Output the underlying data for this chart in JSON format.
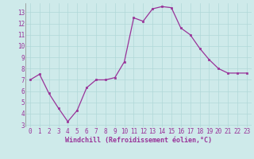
{
  "x": [
    0,
    1,
    2,
    3,
    4,
    5,
    6,
    7,
    8,
    9,
    10,
    11,
    12,
    13,
    14,
    15,
    16,
    17,
    18,
    19,
    20,
    21,
    22,
    23
  ],
  "y": [
    7.0,
    7.5,
    5.8,
    4.5,
    3.3,
    4.3,
    6.3,
    7.0,
    7.0,
    7.2,
    8.6,
    12.5,
    12.2,
    13.3,
    13.5,
    13.4,
    11.6,
    11.0,
    9.8,
    8.8,
    8.0,
    7.6,
    7.6,
    7.6
  ],
  "line_color": "#993399",
  "marker": "s",
  "marker_size": 1.8,
  "line_width": 0.9,
  "bg_color": "#ceeaea",
  "grid_color": "#b0d8d8",
  "xlabel": "Windchill (Refroidissement éolien,°C)",
  "xlabel_fontsize": 6.0,
  "xlabel_color": "#993399",
  "ylim": [
    2.8,
    13.8
  ],
  "xlim": [
    -0.5,
    23.5
  ],
  "tick_fontsize": 5.5,
  "tick_color": "#993399",
  "yticks": [
    3,
    4,
    5,
    6,
    7,
    8,
    9,
    10,
    11,
    12,
    13
  ]
}
